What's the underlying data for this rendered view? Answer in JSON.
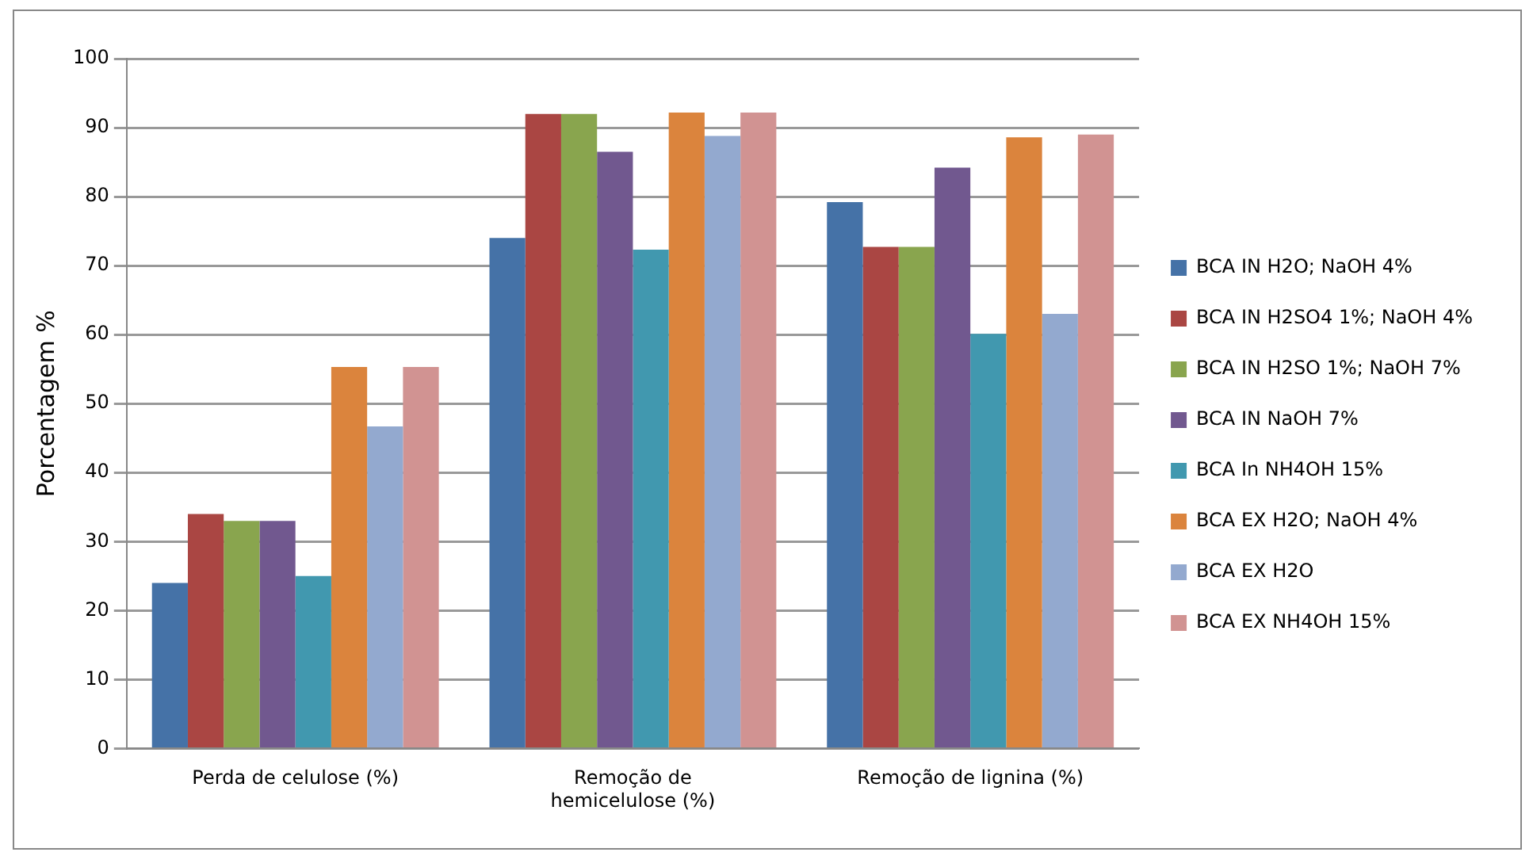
{
  "chart_data": {
    "type": "bar",
    "ylabel": "Porcentagem %",
    "categories": [
      "Perda de celulose (%)",
      "Remoção de\nhemicelulose (%)",
      "Remoção de lignina (%)"
    ],
    "series": [
      {
        "name": "BCA IN H2O; NaOH 4%",
        "color": "#4572a7",
        "values": [
          24,
          74,
          79.2
        ]
      },
      {
        "name": "BCA IN H2SO4 1%; NaOH 4%",
        "color": "#aa4643",
        "values": [
          34,
          92,
          72.7
        ]
      },
      {
        "name": "BCA IN H2SO 1%; NaOH 7%",
        "color": "#89a54e",
        "values": [
          33,
          92,
          72.7
        ]
      },
      {
        "name": "BCA IN NaOH 7%",
        "color": "#71588f",
        "values": [
          33,
          86.5,
          84.2
        ]
      },
      {
        "name": "BCA In NH4OH 15%",
        "color": "#4198af",
        "values": [
          25,
          72.3,
          60.1
        ]
      },
      {
        "name": "BCA EX H2O; NaOH 4%",
        "color": "#db843d",
        "values": [
          55.3,
          92.2,
          88.6
        ]
      },
      {
        "name": "BCA EX H2O",
        "color": "#93a9cf",
        "values": [
          46.7,
          88.8,
          63
        ]
      },
      {
        "name": "BCA EX NH4OH 15%",
        "color": "#d19392",
        "values": [
          55.3,
          92.2,
          89
        ]
      }
    ],
    "ylim": [
      0,
      100
    ],
    "yticks": [
      0,
      10,
      20,
      30,
      40,
      50,
      60,
      70,
      80,
      90,
      100
    ],
    "grid": "y",
    "legend": "right"
  }
}
